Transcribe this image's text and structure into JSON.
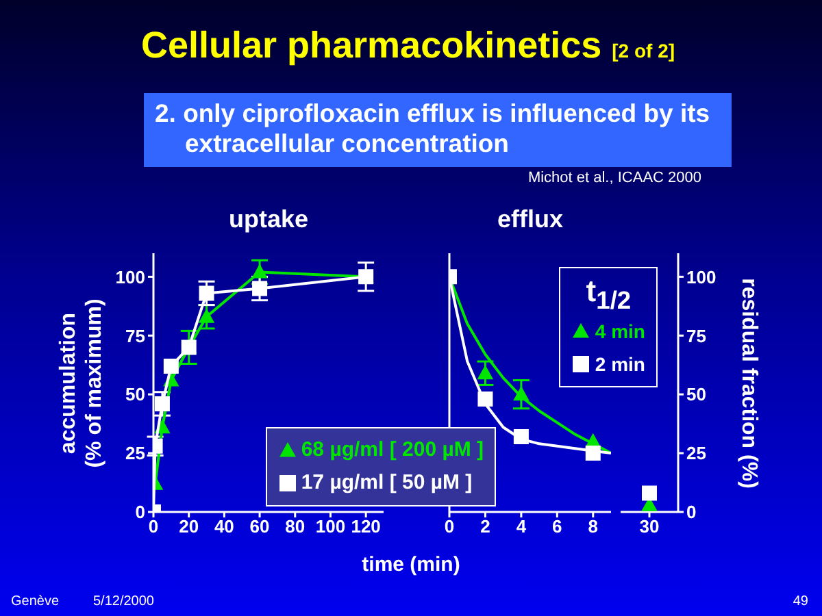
{
  "chart_data": [
    {
      "type": "line",
      "title": "uptake",
      "ylabel": "accumulation (% of maximum)",
      "xlabel": "time (min)",
      "xlim": [
        0,
        130
      ],
      "xticks": [
        0,
        20,
        40,
        60,
        80,
        100,
        120
      ],
      "ylim": [
        0,
        110
      ],
      "yticks": [
        0,
        25,
        50,
        75,
        100
      ],
      "legend": "bottom right",
      "grid": false,
      "annotations": [
        "Cellular pharmacokinetics [2 of 2]",
        "2. only ciprofloxacin efflux is influenced by its extracellular concentration",
        "Michot et al., ICAAC 2000",
        "Genève",
        "5/12/2000",
        "49"
      ],
      "series": [
        {
          "name": "68 µg/ml [ 200 µM ]",
          "color": "#00e600",
          "marker": "triangle",
          "x": [
            1,
            5,
            10,
            20,
            30,
            60,
            120
          ],
          "values": [
            12,
            36,
            56,
            70,
            83,
            102,
            100
          ],
          "errors": [
            null,
            null,
            null,
            7,
            5,
            5,
            null
          ]
        },
        {
          "name": "17 µg/ml [ 50 µM ]",
          "color": "#ffffff",
          "marker": "square",
          "x": [
            0,
            1,
            5,
            10,
            20,
            30,
            60,
            120
          ],
          "values": [
            0,
            28,
            46,
            62,
            70,
            93,
            95,
            100
          ],
          "errors": [
            null,
            4,
            5,
            null,
            null,
            5,
            5,
            6
          ]
        }
      ]
    },
    {
      "type": "scatter",
      "title": "efflux",
      "xlim": [
        0,
        9
      ],
      "xticks": [
        0,
        2,
        4,
        6,
        8
      ],
      "ylim": [
        0,
        110
      ],
      "tick_labels": "x",
      "legend": "top right",
      "legend_title": "t$_{1/2}$",
      "grid": false,
      "series": [
        {
          "name": "4 min",
          "color": "#00e600",
          "marker": "triangle",
          "x": [
            2,
            4,
            8
          ],
          "values": [
            59,
            50,
            30
          ],
          "errors": [
            5,
            6,
            null
          ]
        },
        {
          "name": "2 min",
          "color": "#ffffff",
          "marker": "square",
          "x": [
            0,
            2,
            4,
            8
          ],
          "values": [
            100,
            48,
            32,
            25
          ]
        },
        {
          "type": "line",
          "color": "#00e600",
          "marker": "none",
          "x": [
            0,
            1,
            2,
            3,
            4,
            5,
            6,
            7,
            8,
            9
          ],
          "values": [
            100,
            80,
            67,
            57,
            49,
            43,
            38,
            33,
            29,
            25
          ]
        },
        {
          "type": "line",
          "color": "#ffffff",
          "marker": "none",
          "x": [
            0,
            1,
            2,
            3,
            4,
            5,
            6,
            7,
            8,
            9
          ],
          "values": [
            100,
            64,
            46,
            36,
            31,
            29,
            28,
            27,
            26,
            25
          ]
        }
      ]
    },
    {
      "type": "scatter",
      "categories": [
        "30"
      ],
      "y2lim": [
        0,
        110
      ],
      "y2ticks": [
        0,
        25,
        50,
        75,
        100
      ],
      "y2label": "residual fraction (%)",
      "grid": false,
      "series": [
        {
          "color": "#00e600",
          "marker": "triangle",
          "axis": "y2",
          "values": [
            3
          ]
        },
        {
          "color": "#ffffff",
          "marker": "square",
          "axis": "y2",
          "values": [
            8
          ]
        }
      ]
    }
  ]
}
